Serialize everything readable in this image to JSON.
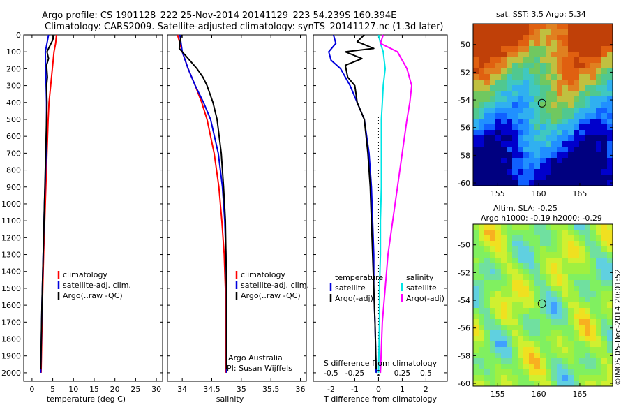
{
  "title": {
    "line1": "Argo profile: CS 1901128_222 25-Nov-2014 20141129_223 54.239S 160.394E",
    "line2": "Climatology: CARS2009. Satellite-adjusted climatology: synTS_20141127.nc (1.3d later)"
  },
  "credit": "Argo Australia",
  "pi": "PI: Susan Wijffels",
  "stamp": "©IMOS 05-Dec-2014 20:01:52",
  "colors": {
    "climatology": "#ff0000",
    "satellite": "#0000dd",
    "argo": "#000000",
    "satellite_s": "#00e5e5",
    "argo_s": "#ff00ff"
  },
  "map_top": {
    "title": "sat. SST: 3.5 Argo: 5.34"
  },
  "map_bottom": {
    "title1": "Altim. SLA: -0.25",
    "title2": "Argo h1000: -0.19 h2000: -0.29"
  },
  "chart_data": [
    {
      "type": "line",
      "xlabel": "temperature (deg C)",
      "xticks": [
        0,
        5,
        10,
        15,
        20,
        25,
        30
      ],
      "xlim": [
        -2,
        31.5
      ],
      "ylim": [
        2050,
        0
      ],
      "yticks": [
        0,
        100,
        200,
        300,
        400,
        500,
        600,
        700,
        800,
        900,
        1000,
        1100,
        1200,
        1300,
        1400,
        1500,
        1600,
        1700,
        1800,
        1900,
        2000
      ],
      "legend": [
        "climatology",
        "satellite-adj. clim.",
        "Argo(..raw -QC)"
      ],
      "series": [
        {
          "name": "climatology",
          "depth": [
            0,
            50,
            100,
            200,
            300,
            400,
            500,
            700,
            1000,
            1300,
            1600,
            2000
          ],
          "values": [
            5.9,
            5.7,
            5.3,
            4.9,
            4.5,
            4.1,
            3.9,
            3.6,
            3.2,
            2.8,
            2.5,
            2.2
          ]
        },
        {
          "name": "satellite-adj. clim.",
          "depth": [
            0,
            50,
            100,
            200,
            300,
            400,
            500,
            700,
            1000,
            1300,
            1600,
            2000
          ],
          "values": [
            4.0,
            3.6,
            3.2,
            3.3,
            3.4,
            3.5,
            3.5,
            3.4,
            3.0,
            2.7,
            2.4,
            2.1
          ]
        },
        {
          "name": "Argo(..raw -QC)",
          "depth": [
            0,
            30,
            60,
            100,
            140,
            180,
            250,
            300,
            400,
            500,
            700,
            1000,
            1300,
            1600,
            1980
          ],
          "values": [
            5.3,
            5.0,
            4.4,
            3.6,
            4.0,
            3.5,
            3.7,
            3.5,
            3.6,
            3.5,
            3.3,
            3.0,
            2.7,
            2.4,
            2.1
          ]
        }
      ]
    },
    {
      "type": "line",
      "xlabel": "salinity",
      "xticks": [
        34,
        34.5,
        35,
        35.5,
        36
      ],
      "xlim": [
        33.75,
        36.1
      ],
      "ylim": [
        2050,
        0
      ],
      "legend": [
        "climatology",
        "satellite-adj. clim.",
        "Argo(..raw -QC)"
      ],
      "series": [
        {
          "name": "climatology",
          "depth": [
            0,
            50,
            100,
            200,
            300,
            400,
            500,
            700,
            900,
            1100,
            1300,
            1500,
            2000
          ],
          "values": [
            33.92,
            33.96,
            34.0,
            34.1,
            34.22,
            34.33,
            34.42,
            34.54,
            34.62,
            34.67,
            34.71,
            34.73,
            34.74
          ]
        },
        {
          "name": "satellite-adj. clim.",
          "depth": [
            0,
            50,
            100,
            200,
            300,
            400,
            500,
            700,
            900,
            1100,
            1300,
            1500,
            2000
          ],
          "values": [
            33.96,
            33.98,
            34.0,
            34.1,
            34.22,
            34.36,
            34.48,
            34.61,
            34.68,
            34.72,
            34.74,
            34.75,
            34.75
          ]
        },
        {
          "name": "Argo(..raw -QC)",
          "depth": [
            0,
            40,
            80,
            120,
            160,
            200,
            250,
            300,
            400,
            500,
            700,
            900,
            1100,
            1300,
            1500,
            1980
          ],
          "values": [
            33.99,
            33.96,
            33.95,
            34.05,
            34.15,
            34.25,
            34.35,
            34.42,
            34.52,
            34.59,
            34.66,
            34.7,
            34.73,
            34.74,
            34.75,
            34.75
          ]
        }
      ]
    },
    {
      "type": "line",
      "xlabel": "T difference from climatology",
      "xlabel2": "S difference from climatology",
      "xticks": [
        -2,
        -1,
        0,
        1,
        2
      ],
      "xticks_s": [
        "-0.5",
        "-0.25",
        "0",
        "0.25",
        "0.5"
      ],
      "xlim": [
        -2.75,
        2.9
      ],
      "ylim": [
        2050,
        0
      ],
      "legend_t": [
        "temperature",
        "satellite",
        "Argo(-adj)"
      ],
      "legend_s": [
        "salinity",
        "satellite",
        "Argo(-adj)"
      ],
      "series": [
        {
          "name": "satellite",
          "depth": [
            0,
            50,
            100,
            150,
            200,
            300,
            400,
            500,
            700,
            900,
            1100,
            1300,
            1500,
            1700,
            2000
          ],
          "values": [
            -1.9,
            -1.8,
            -2.1,
            -2.0,
            -1.6,
            -1.2,
            -0.9,
            -0.6,
            -0.4,
            -0.3,
            -0.25,
            -0.2,
            -0.2,
            -0.15,
            -0.1
          ]
        },
        {
          "name": "Argo(-adj)",
          "depth": [
            0,
            40,
            80,
            100,
            140,
            180,
            250,
            300,
            400,
            500,
            700,
            900,
            1100,
            1300,
            1500,
            1700,
            1980
          ],
          "values": [
            -0.6,
            -0.9,
            -0.2,
            -1.4,
            -0.7,
            -1.4,
            -1.3,
            -1.0,
            -0.9,
            -0.6,
            -0.45,
            -0.35,
            -0.3,
            -0.25,
            -0.2,
            -0.15,
            -0.1
          ]
        },
        {
          "name": "satellite (S)",
          "depth": [
            0,
            50,
            100,
            200,
            300,
            400,
            500,
            700,
            900,
            1100,
            1300,
            1500,
            1700,
            2000
          ],
          "values": [
            0.0,
            0.02,
            0.05,
            0.07,
            0.05,
            0.04,
            0.03,
            0.03,
            0.03,
            0.02,
            0.02,
            0.01,
            0.01,
            0.0
          ]
        },
        {
          "name": "Argo(-adj) (S)",
          "depth": [
            0,
            50,
            100,
            150,
            200,
            300,
            400,
            500,
            700,
            900,
            1100,
            1300,
            1500,
            1700,
            2000
          ],
          "values": [
            0.05,
            0.02,
            0.2,
            0.25,
            0.3,
            0.35,
            0.33,
            0.3,
            0.25,
            0.2,
            0.15,
            0.1,
            0.07,
            0.04,
            0.02
          ]
        }
      ]
    }
  ],
  "map_axes": {
    "lon_ticks": [
      "155",
      "160",
      "165"
    ],
    "lat_ticks": [
      "-50",
      "-52",
      "-54",
      "-56",
      "-58",
      "-60"
    ],
    "lon_range": [
      152,
      169
    ],
    "lat_range": [
      -60.2,
      -48.5
    ],
    "argo_position": {
      "lon": 160.394,
      "lat": -54.239
    }
  }
}
